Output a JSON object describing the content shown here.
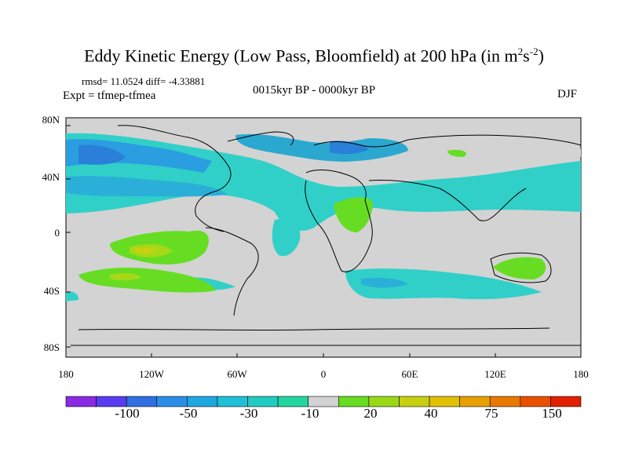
{
  "title": {
    "main": "Eddy Kinetic Energy (Low Pass, Bloomfield) at 200 hPa (in m",
    "sup1": "2",
    "mid": "s",
    "sup2": "-2",
    "end": ")"
  },
  "stats": "rmsd= 11.0524 diff= -4.33881",
  "expt": "Expt = tfmep-tfmea",
  "period": "0015kyr BP - 0000kyr BP",
  "season": "DJF",
  "lat_labels": [
    "80N",
    "40N",
    "0",
    "40S",
    "80S"
  ],
  "lon_labels": [
    "180",
    "120W",
    "60W",
    "0",
    "60E",
    "120E",
    "180"
  ],
  "colorbar": {
    "labels": [
      "-100",
      "-50",
      "-30",
      "-10",
      "20",
      "40",
      "75",
      "150"
    ],
    "colors": [
      "#8a2be2",
      "#5a3cf0",
      "#2f6fe0",
      "#2a8ee6",
      "#1fa8e0",
      "#20c0d8",
      "#22ccc0",
      "#25d5a0",
      "#d3d3d3",
      "#66dd22",
      "#99d818",
      "#c6d010",
      "#e0c000",
      "#e8a000",
      "#e87800",
      "#e85000",
      "#e02000"
    ]
  }
}
